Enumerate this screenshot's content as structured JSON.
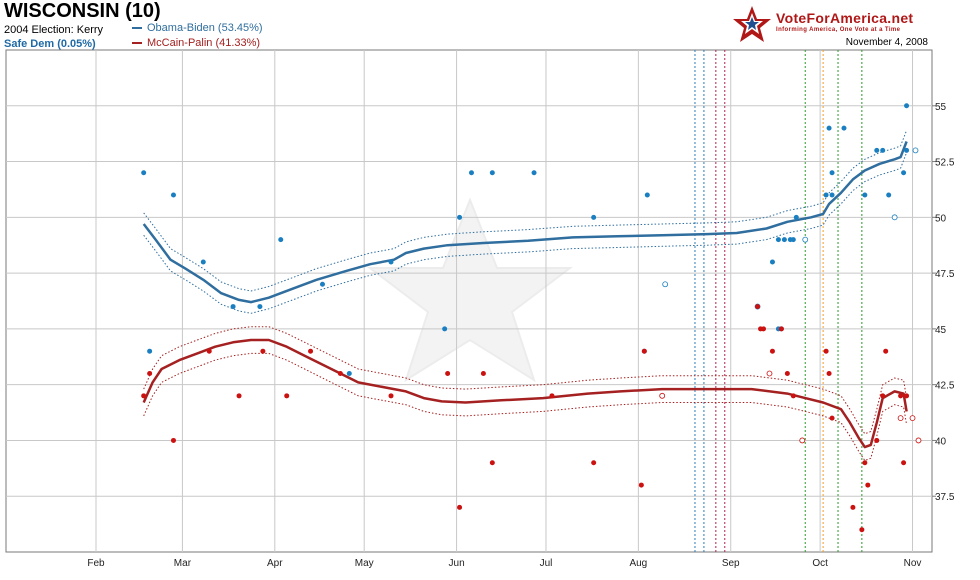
{
  "header": {
    "title": "WISCONSIN (10)",
    "prev_election": "2004 Election: Kerry",
    "status": "Safe Dem (0.05%)",
    "date": "November 4, 2008",
    "logo_text": "VoteForAmerica.net",
    "logo_tagline": "Informing America, One Vote at a Time"
  },
  "colors": {
    "dem": "#2f6e9e",
    "dem_dot": "#1a7fc1",
    "rep": "#a52020",
    "rep_dot": "#cc1111",
    "grid": "#c8c8c8"
  },
  "chart_data": {
    "type": "line",
    "title": "WISCONSIN (10)",
    "xlabel": "",
    "ylabel": "",
    "x_range_days": [
      0,
      280
    ],
    "x_ticks": [
      {
        "label": "Feb",
        "day": 0
      },
      {
        "label": "Mar",
        "day": 29
      },
      {
        "label": "Apr",
        "day": 60
      },
      {
        "label": "May",
        "day": 90
      },
      {
        "label": "Jun",
        "day": 121
      },
      {
        "label": "Jul",
        "day": 151
      },
      {
        "label": "Aug",
        "day": 182
      },
      {
        "label": "Sep",
        "day": 213
      },
      {
        "label": "Oct",
        "day": 243
      },
      {
        "label": "Nov",
        "day": 274
      }
    ],
    "ylim": [
      35,
      57.5
    ],
    "y_ticks": [
      "37.5",
      "40",
      "42.5",
      "45",
      "47.5",
      "50",
      "52.5",
      "55"
    ],
    "event_lines": [
      {
        "day": 201,
        "color": "#2a7fb8"
      },
      {
        "day": 204,
        "color": "#2a7fb8"
      },
      {
        "day": 208,
        "color": "#b02050"
      },
      {
        "day": 211,
        "color": "#b02050"
      },
      {
        "day": 238,
        "color": "#2a9a2a"
      },
      {
        "day": 244,
        "color": "#f0a020"
      },
      {
        "day": 249,
        "color": "#2a9a2a"
      },
      {
        "day": 257,
        "color": "#2a9a2a"
      }
    ],
    "series": [
      {
        "name": "Obama-Biden",
        "legend": "Obama-Biden (53.45%)",
        "color": "#2f6e9e",
        "trend": [
          [
            16,
            49.7
          ],
          [
            20,
            49
          ],
          [
            25,
            48.1
          ],
          [
            30,
            47.7
          ],
          [
            36,
            47.2
          ],
          [
            42,
            46.6
          ],
          [
            48,
            46.3
          ],
          [
            52,
            46.2
          ],
          [
            58,
            46.4
          ],
          [
            66,
            46.8
          ],
          [
            74,
            47.2
          ],
          [
            84,
            47.6
          ],
          [
            92,
            47.9
          ],
          [
            100,
            48.1
          ],
          [
            104,
            48.4
          ],
          [
            110,
            48.6
          ],
          [
            118,
            48.75
          ],
          [
            130,
            48.85
          ],
          [
            145,
            48.95
          ],
          [
            160,
            49.1
          ],
          [
            175,
            49.15
          ],
          [
            190,
            49.2
          ],
          [
            205,
            49.25
          ],
          [
            215,
            49.3
          ],
          [
            225,
            49.5
          ],
          [
            232,
            49.8
          ],
          [
            240,
            50
          ],
          [
            244,
            50.15
          ],
          [
            246,
            50.6
          ],
          [
            250,
            51.1
          ],
          [
            254,
            51.7
          ],
          [
            258,
            52.1
          ],
          [
            263,
            52.4
          ],
          [
            268,
            52.6
          ],
          [
            270,
            52.7
          ],
          [
            272,
            53.4
          ]
        ],
        "band_offset": 0.5,
        "points": [
          [
            16,
            52
          ],
          [
            18,
            44
          ],
          [
            26,
            51
          ],
          [
            36,
            48
          ],
          [
            46,
            46
          ],
          [
            55,
            46
          ],
          [
            62,
            49
          ],
          [
            76,
            47
          ],
          [
            85,
            43
          ],
          [
            99,
            48
          ],
          [
            117,
            45
          ],
          [
            122,
            50
          ],
          [
            126,
            52
          ],
          [
            133,
            52
          ],
          [
            147,
            52
          ],
          [
            167,
            50
          ],
          [
            184,
            44
          ],
          [
            185,
            51
          ],
          [
            227,
            48
          ],
          [
            229,
            45
          ],
          [
            230,
            45
          ],
          [
            231,
            49
          ],
          [
            233,
            49
          ],
          [
            234,
            49
          ],
          [
            235,
            50
          ],
          [
            245,
            51
          ],
          [
            246,
            54
          ],
          [
            247,
            51
          ],
          [
            247,
            52
          ],
          [
            251,
            54
          ],
          [
            258,
            51
          ],
          [
            262,
            53
          ],
          [
            264,
            53
          ],
          [
            266,
            51
          ],
          [
            271,
            52
          ],
          [
            272,
            55
          ],
          [
            272,
            53
          ],
          [
            229,
            49
          ]
        ],
        "undecided_points": [
          [
            191,
            47
          ],
          [
            222,
            46
          ],
          [
            238,
            49
          ],
          [
            268,
            50
          ],
          [
            275,
            53
          ]
        ]
      },
      {
        "name": "McCain-Palin",
        "legend": "McCain-Palin (41.33%)",
        "color": "#a52020",
        "trend": [
          [
            16,
            41.7
          ],
          [
            19,
            42.6
          ],
          [
            22,
            43.2
          ],
          [
            28,
            43.6
          ],
          [
            34,
            43.9
          ],
          [
            40,
            44.2
          ],
          [
            46,
            44.4
          ],
          [
            52,
            44.5
          ],
          [
            58,
            44.5
          ],
          [
            64,
            44.2
          ],
          [
            70,
            43.8
          ],
          [
            76,
            43.4
          ],
          [
            82,
            43
          ],
          [
            88,
            42.6
          ],
          [
            96,
            42.4
          ],
          [
            104,
            42.2
          ],
          [
            110,
            41.9
          ],
          [
            116,
            41.75
          ],
          [
            124,
            41.7
          ],
          [
            136,
            41.8
          ],
          [
            150,
            41.9
          ],
          [
            165,
            42.1
          ],
          [
            176,
            42.2
          ],
          [
            190,
            42.3
          ],
          [
            205,
            42.3
          ],
          [
            220,
            42.3
          ],
          [
            232,
            42.1
          ],
          [
            238,
            41.9
          ],
          [
            244,
            41.7
          ],
          [
            250,
            41.4
          ],
          [
            253,
            40.8
          ],
          [
            256,
            40.1
          ],
          [
            258,
            39.7
          ],
          [
            260,
            39.8
          ],
          [
            262,
            40.8
          ],
          [
            264,
            41.9
          ],
          [
            268,
            42.2
          ],
          [
            271,
            42.1
          ],
          [
            272,
            41.3
          ]
        ],
        "band_offset": 0.6,
        "points": [
          [
            16,
            42
          ],
          [
            18,
            43
          ],
          [
            26,
            40
          ],
          [
            38,
            44
          ],
          [
            48,
            42
          ],
          [
            56,
            44
          ],
          [
            64,
            42
          ],
          [
            72,
            44
          ],
          [
            82,
            43
          ],
          [
            99,
            42
          ],
          [
            118,
            43
          ],
          [
            122,
            37
          ],
          [
            130,
            43
          ],
          [
            133,
            39
          ],
          [
            153,
            42
          ],
          [
            167,
            39
          ],
          [
            183,
            38
          ],
          [
            184,
            44
          ],
          [
            222,
            46
          ],
          [
            223,
            45
          ],
          [
            224,
            45
          ],
          [
            227,
            44
          ],
          [
            230,
            45
          ],
          [
            232,
            43
          ],
          [
            234,
            42
          ],
          [
            245,
            44
          ],
          [
            246,
            43
          ],
          [
            247,
            41
          ],
          [
            254,
            37
          ],
          [
            257,
            36
          ],
          [
            258,
            39
          ],
          [
            259,
            38
          ],
          [
            262,
            40
          ],
          [
            264,
            42
          ],
          [
            265,
            44
          ],
          [
            270,
            42
          ],
          [
            271,
            39
          ],
          [
            272,
            42
          ]
        ],
        "undecided_points": [
          [
            190,
            42
          ],
          [
            226,
            43
          ],
          [
            237,
            40
          ],
          [
            270,
            41
          ],
          [
            274,
            41
          ],
          [
            276,
            40
          ]
        ]
      }
    ]
  }
}
